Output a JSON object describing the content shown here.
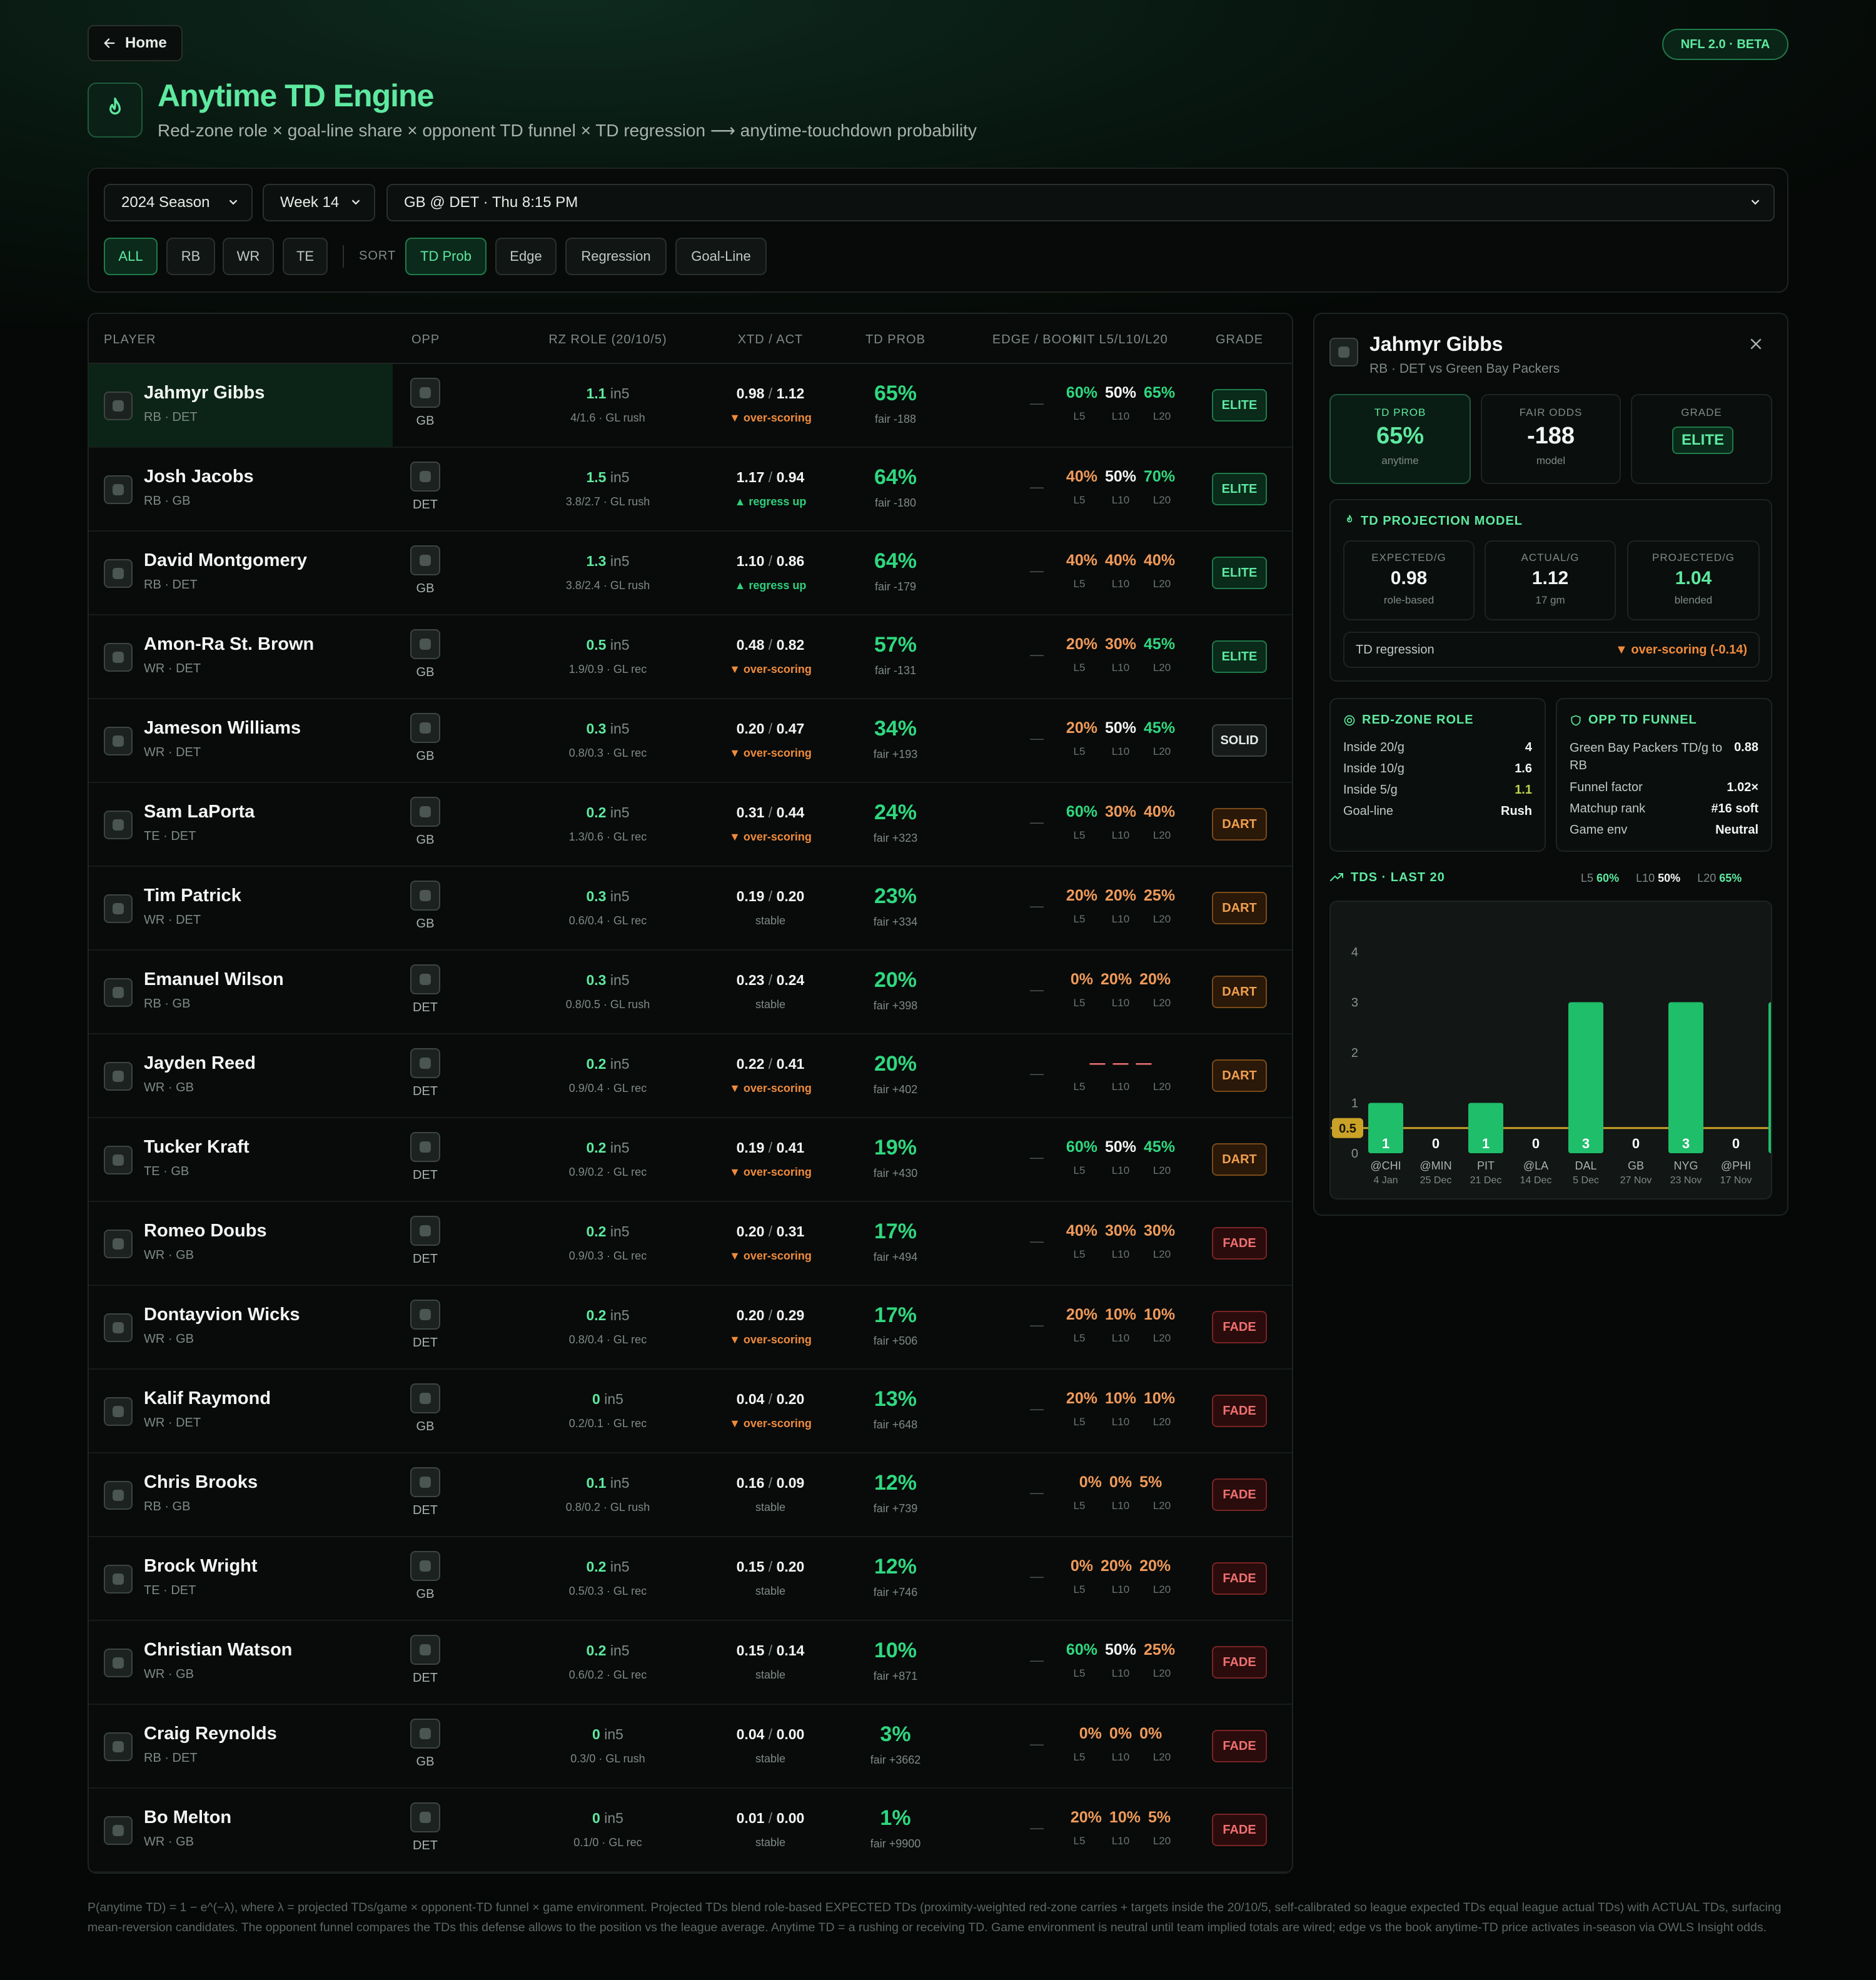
{
  "nav": {
    "home": "Home",
    "badge": "NFL 2.0 · BETA"
  },
  "header": {
    "title": "Anytime TD Engine",
    "subtitle": "Red-zone role × goal-line share × opponent TD funnel × TD regression ⟶ anytime-touchdown probability"
  },
  "filters": {
    "season": "2024 Season",
    "week": "Week 14",
    "game": "GB @ DET · Thu 8:15 PM",
    "positions": [
      "ALL",
      "RB",
      "WR",
      "TE"
    ],
    "sort_label": "SORT",
    "sorts": [
      "TD Prob",
      "Edge",
      "Regression",
      "Goal-Line"
    ]
  },
  "table": {
    "headers": [
      "PLAYER",
      "OPP",
      "RZ ROLE (20/10/5)",
      "XTD / ACT",
      "TD PROB",
      "EDGE / BOOK",
      "HIT L5/L10/L20",
      "GRADE"
    ],
    "hit_labels": [
      "L5",
      "L10",
      "L20"
    ],
    "rows": [
      {
        "name": "Jahmyr Gibbs",
        "meta": "RB · DET",
        "opp": "GB",
        "rz": "1.1",
        "rz_unit": "in5",
        "rz_sub": "4/1.6 · GL rush",
        "xtd": "0.98",
        "act": "1.12",
        "trend": "▼ over-scoring",
        "trend_type": "over",
        "prob": "65%",
        "fair": "fair -188",
        "edge": "—",
        "hits": [
          "60%",
          "50%",
          "65%"
        ],
        "hit_color": "g",
        "grade": "ELITE"
      },
      {
        "name": "Josh Jacobs",
        "meta": "RB · GB",
        "opp": "DET",
        "rz": "1.5",
        "rz_unit": "in5",
        "rz_sub": "3.8/2.7 · GL rush",
        "xtd": "1.17",
        "act": "0.94",
        "trend": "▲ regress up",
        "trend_type": "up",
        "prob": "64%",
        "fair": "fair -180",
        "edge": "—",
        "hits": [
          "40%",
          "50%",
          "70%"
        ],
        "hit_color": "m",
        "grade": "ELITE"
      },
      {
        "name": "David Montgomery",
        "meta": "RB · DET",
        "opp": "GB",
        "rz": "1.3",
        "rz_unit": "in5",
        "rz_sub": "3.8/2.4 · GL rush",
        "xtd": "1.10",
        "act": "0.86",
        "trend": "▲ regress up",
        "trend_type": "up",
        "prob": "64%",
        "fair": "fair -179",
        "edge": "—",
        "hits": [
          "40%",
          "40%",
          "40%"
        ],
        "hit_color": "o",
        "grade": "ELITE"
      },
      {
        "name": "Amon-Ra St. Brown",
        "meta": "WR · DET",
        "opp": "GB",
        "rz": "0.5",
        "rz_unit": "in5",
        "rz_sub": "1.9/0.9 · GL rec",
        "xtd": "0.48",
        "act": "0.82",
        "trend": "▼ over-scoring",
        "trend_type": "over",
        "prob": "57%",
        "fair": "fair -131",
        "edge": "—",
        "hits": [
          "20%",
          "30%",
          "45%"
        ],
        "hit_color": "m",
        "grade": "ELITE"
      },
      {
        "name": "Jameson Williams",
        "meta": "WR · DET",
        "opp": "GB",
        "rz": "0.3",
        "rz_unit": "in5",
        "rz_sub": "0.8/0.3 · GL rec",
        "xtd": "0.20",
        "act": "0.47",
        "trend": "▼ over-scoring",
        "trend_type": "over",
        "prob": "34%",
        "fair": "fair +193",
        "edge": "—",
        "hits": [
          "20%",
          "50%",
          "45%"
        ],
        "hit_color": "m",
        "grade": "SOLID"
      },
      {
        "name": "Sam LaPorta",
        "meta": "TE · DET",
        "opp": "GB",
        "rz": "0.2",
        "rz_unit": "in5",
        "rz_sub": "1.3/0.6 · GL rec",
        "xtd": "0.31",
        "act": "0.44",
        "trend": "▼ over-scoring",
        "trend_type": "over",
        "prob": "24%",
        "fair": "fair +323",
        "edge": "—",
        "hits": [
          "60%",
          "30%",
          "40%"
        ],
        "hit_color": "m",
        "grade": "DART"
      },
      {
        "name": "Tim Patrick",
        "meta": "WR · DET",
        "opp": "GB",
        "rz": "0.3",
        "rz_unit": "in5",
        "rz_sub": "0.6/0.4 · GL rec",
        "xtd": "0.19",
        "act": "0.20",
        "trend": "stable",
        "trend_type": "st",
        "prob": "23%",
        "fair": "fair +334",
        "edge": "—",
        "hits": [
          "20%",
          "20%",
          "25%"
        ],
        "hit_color": "o",
        "grade": "DART"
      },
      {
        "name": "Emanuel Wilson",
        "meta": "RB · GB",
        "opp": "DET",
        "rz": "0.3",
        "rz_unit": "in5",
        "rz_sub": "0.8/0.5 · GL rush",
        "xtd": "0.23",
        "act": "0.24",
        "trend": "stable",
        "trend_type": "st",
        "prob": "20%",
        "fair": "fair +398",
        "edge": "—",
        "hits": [
          "0%",
          "20%",
          "20%"
        ],
        "hit_color": "o",
        "grade": "DART"
      },
      {
        "name": "Jayden Reed",
        "meta": "WR · GB",
        "opp": "DET",
        "rz": "0.2",
        "rz_unit": "in5",
        "rz_sub": "0.9/0.4 · GL rec",
        "xtd": "0.22",
        "act": "0.41",
        "trend": "▼ over-scoring",
        "trend_type": "over",
        "prob": "20%",
        "fair": "fair +402",
        "edge": "—",
        "hits": [
          "—",
          "—",
          "—"
        ],
        "hit_color": "r",
        "grade": "DART"
      },
      {
        "name": "Tucker Kraft",
        "meta": "TE · GB",
        "opp": "DET",
        "rz": "0.2",
        "rz_unit": "in5",
        "rz_sub": "0.9/0.2 · GL rec",
        "xtd": "0.19",
        "act": "0.41",
        "trend": "▼ over-scoring",
        "trend_type": "over",
        "prob": "19%",
        "fair": "fair +430",
        "edge": "—",
        "hits": [
          "60%",
          "50%",
          "45%"
        ],
        "hit_color": "m",
        "grade": "DART"
      },
      {
        "name": "Romeo Doubs",
        "meta": "WR · GB",
        "opp": "DET",
        "rz": "0.2",
        "rz_unit": "in5",
        "rz_sub": "0.9/0.3 · GL rec",
        "xtd": "0.20",
        "act": "0.31",
        "trend": "▼ over-scoring",
        "trend_type": "over",
        "prob": "17%",
        "fair": "fair +494",
        "edge": "—",
        "hits": [
          "40%",
          "30%",
          "30%"
        ],
        "hit_color": "o",
        "grade": "FADE"
      },
      {
        "name": "Dontayvion Wicks",
        "meta": "WR · GB",
        "opp": "DET",
        "rz": "0.2",
        "rz_unit": "in5",
        "rz_sub": "0.8/0.4 · GL rec",
        "xtd": "0.20",
        "act": "0.29",
        "trend": "▼ over-scoring",
        "trend_type": "over",
        "prob": "17%",
        "fair": "fair +506",
        "edge": "—",
        "hits": [
          "20%",
          "10%",
          "10%"
        ],
        "hit_color": "o",
        "grade": "FADE"
      },
      {
        "name": "Kalif Raymond",
        "meta": "WR · DET",
        "opp": "GB",
        "rz": "0",
        "rz_unit": "in5",
        "rz_sub": "0.2/0.1 · GL rec",
        "xtd": "0.04",
        "act": "0.20",
        "trend": "▼ over-scoring",
        "trend_type": "over",
        "prob": "13%",
        "fair": "fair +648",
        "edge": "—",
        "hits": [
          "20%",
          "10%",
          "10%"
        ],
        "hit_color": "o",
        "grade": "FADE"
      },
      {
        "name": "Chris Brooks",
        "meta": "RB · GB",
        "opp": "DET",
        "rz": "0.1",
        "rz_unit": "in5",
        "rz_sub": "0.8/0.2 · GL rush",
        "xtd": "0.16",
        "act": "0.09",
        "trend": "stable",
        "trend_type": "st",
        "prob": "12%",
        "fair": "fair +739",
        "edge": "—",
        "hits": [
          "0%",
          "0%",
          "5%"
        ],
        "hit_color": "o",
        "grade": "FADE"
      },
      {
        "name": "Brock Wright",
        "meta": "TE · DET",
        "opp": "GB",
        "rz": "0.2",
        "rz_unit": "in5",
        "rz_sub": "0.5/0.3 · GL rec",
        "xtd": "0.15",
        "act": "0.20",
        "trend": "stable",
        "trend_type": "st",
        "prob": "12%",
        "fair": "fair +746",
        "edge": "—",
        "hits": [
          "0%",
          "20%",
          "20%"
        ],
        "hit_color": "o",
        "grade": "FADE"
      },
      {
        "name": "Christian Watson",
        "meta": "WR · GB",
        "opp": "DET",
        "rz": "0.2",
        "rz_unit": "in5",
        "rz_sub": "0.6/0.2 · GL rec",
        "xtd": "0.15",
        "act": "0.14",
        "trend": "stable",
        "trend_type": "st",
        "prob": "10%",
        "fair": "fair +871",
        "edge": "—",
        "hits": [
          "60%",
          "50%",
          "25%"
        ],
        "hit_color": "g",
        "grade": "FADE"
      },
      {
        "name": "Craig Reynolds",
        "meta": "RB · DET",
        "opp": "GB",
        "rz": "0",
        "rz_unit": "in5",
        "rz_sub": "0.3/0 · GL rush",
        "xtd": "0.04",
        "act": "0.00",
        "trend": "stable",
        "trend_type": "st",
        "prob": "3%",
        "fair": "fair +3662",
        "edge": "—",
        "hits": [
          "0%",
          "0%",
          "0%"
        ],
        "hit_color": "o",
        "grade": "FADE"
      },
      {
        "name": "Bo Melton",
        "meta": "WR · GB",
        "opp": "DET",
        "rz": "0",
        "rz_unit": "in5",
        "rz_sub": "0.1/0 · GL rec",
        "xtd": "0.01",
        "act": "0.00",
        "trend": "stable",
        "trend_type": "st",
        "prob": "1%",
        "fair": "fair +9900",
        "edge": "—",
        "hits": [
          "20%",
          "10%",
          "5%"
        ],
        "hit_color": "o",
        "grade": "FADE"
      }
    ]
  },
  "detail": {
    "name": "Jahmyr Gibbs",
    "meta": "RB · DET vs Green Bay Packers",
    "stats": [
      {
        "label": "TD PROB",
        "value": "65%",
        "sub": "anytime"
      },
      {
        "label": "FAIR ODDS",
        "value": "-188",
        "sub": "model"
      },
      {
        "label": "GRADE",
        "value": "ELITE",
        "sub": ""
      }
    ],
    "model_title": "TD PROJECTION MODEL",
    "model": [
      {
        "label": "EXPECTED/G",
        "value": "0.98",
        "sub": "role-based"
      },
      {
        "label": "ACTUAL/G",
        "value": "1.12",
        "sub": "17 gm"
      },
      {
        "label": "PROJECTED/G",
        "value": "1.04",
        "sub": "blended"
      }
    ],
    "regression_label": "TD regression",
    "regression_value": "▼ over-scoring (-0.14)",
    "rz_title": "RED-ZONE ROLE",
    "rz": [
      {
        "k": "Inside 20/g",
        "v": "4"
      },
      {
        "k": "Inside 10/g",
        "v": "1.6"
      },
      {
        "k": "Inside 5/g",
        "v": "1.1"
      },
      {
        "k": "Goal-line",
        "v": "Rush"
      }
    ],
    "funnel_title": "OPP TD FUNNEL",
    "funnel": [
      {
        "k": "Green Bay Packers TD/g to RB",
        "v": "0.88"
      },
      {
        "k": "Funnel factor",
        "v": "1.02×"
      },
      {
        "k": "Matchup rank",
        "v": "#16 soft"
      },
      {
        "k": "Game env",
        "v": "Neutral"
      }
    ],
    "tds_title": "TDS · LAST 20",
    "splits": [
      {
        "k": "L5",
        "v": "60%"
      },
      {
        "k": "L10",
        "v": "50%"
      },
      {
        "k": "L20",
        "v": "65%"
      }
    ]
  },
  "chart_data": {
    "type": "bar",
    "title": "TDS · LAST 20",
    "categories": [
      "@CHI",
      "@MIN",
      "PIT",
      "@LA",
      "DAL",
      "GB",
      "NYG",
      "@PHI",
      "@"
    ],
    "dates": [
      "4 Jan",
      "25 Dec",
      "21 Dec",
      "14 Dec",
      "5 Dec",
      "27 Nov",
      "23 Nov",
      "17 Nov",
      ""
    ],
    "values": [
      1,
      0,
      1,
      0,
      3,
      0,
      3,
      0,
      3
    ],
    "ylim": [
      0,
      4
    ],
    "yticks": [
      0,
      1,
      2,
      3,
      4
    ],
    "line_value": 0.5,
    "line_label": "0.5",
    "bar_color": "#1fbe6a",
    "line_color": "#c9a227"
  },
  "footer": {
    "text": "P(anytime TD) = 1 − e^(−λ), where λ = projected TDs/game × opponent-TD funnel × game environment. Projected TDs blend role-based EXPECTED TDs (proximity-weighted red-zone carries + targets inside the 20/10/5, self-calibrated so league expected TDs equal league actual TDs) with ACTUAL TDs, surfacing mean-reversion candidates. The opponent funnel compares the TDs this defense allows to the position vs the league average. Anytime TD = a rushing or receiving TD. Game environment is neutral until team implied totals are wired; edge vs the book anytime-TD price activates in-season via OWLS Insight odds."
  }
}
